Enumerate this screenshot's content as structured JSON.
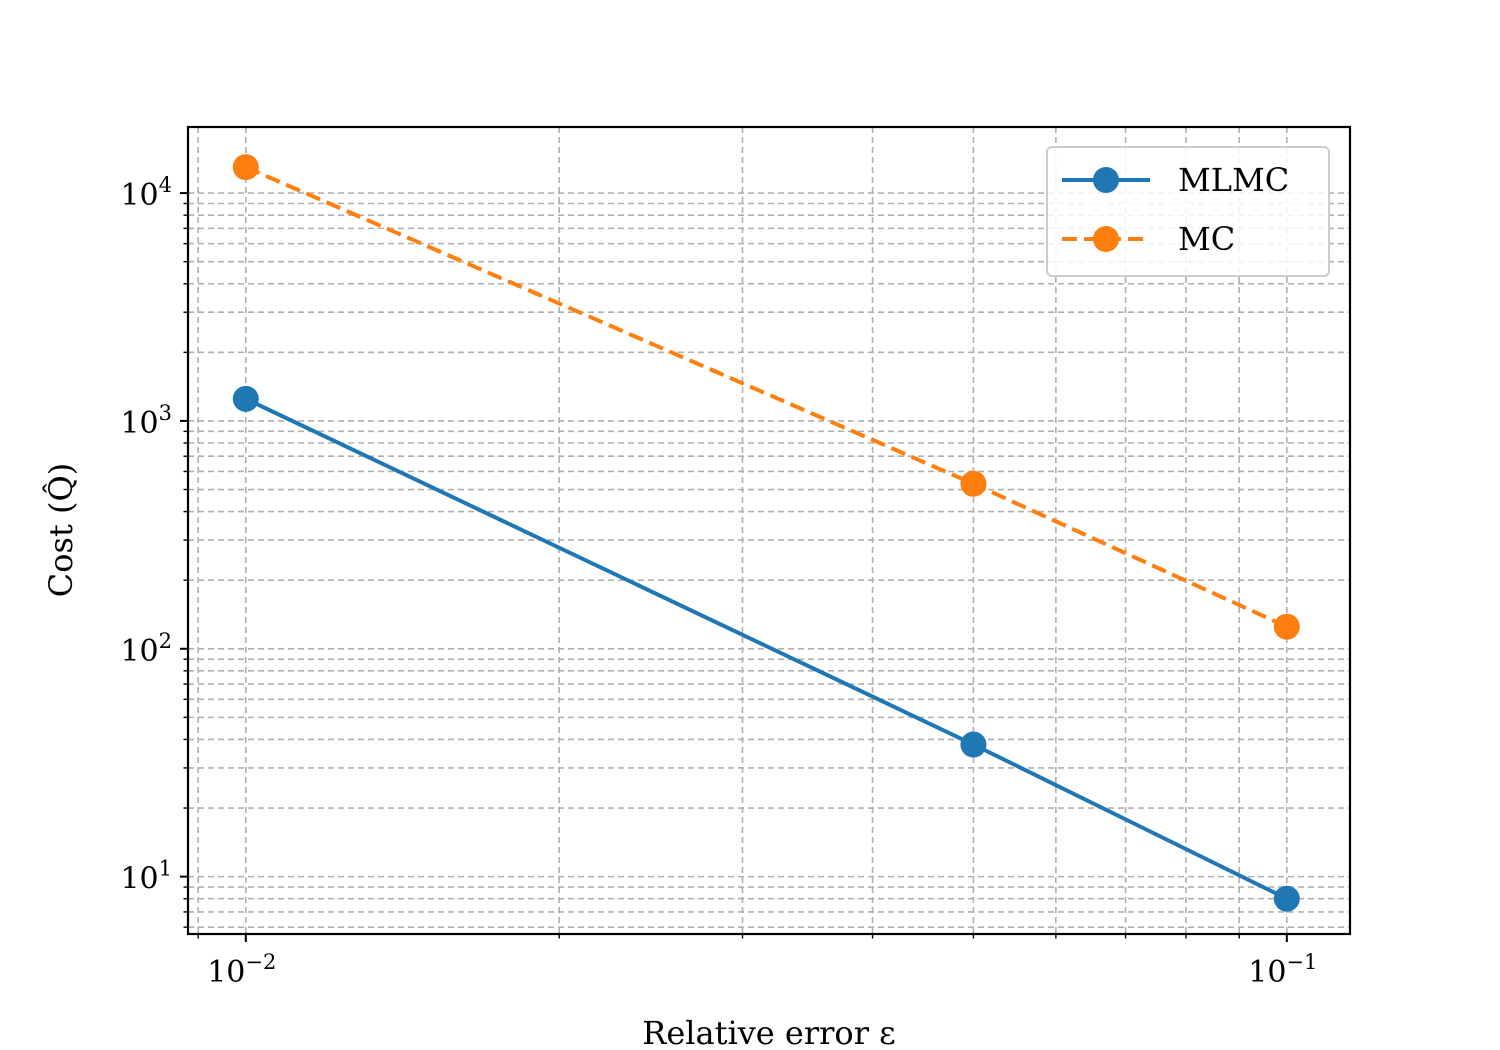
{
  "chart_data": {
    "type": "line",
    "xscale": "log",
    "yscale": "log",
    "xlabel": "Relative error ε",
    "ylabel": "Cost (Q̂)",
    "xlim": [
      0.0088,
      0.115
    ],
    "ylim": [
      5.6,
      19500
    ],
    "grid": true,
    "legend_position": "top-right",
    "x_ticks": [
      {
        "value": 0.01,
        "base": "10",
        "exp": "−2"
      },
      {
        "value": 0.1,
        "base": "10",
        "exp": "−1"
      }
    ],
    "y_ticks": [
      {
        "value": 10,
        "base": "10",
        "exp": "1"
      },
      {
        "value": 100,
        "base": "10",
        "exp": "2"
      },
      {
        "value": 1000,
        "base": "10",
        "exp": "3"
      },
      {
        "value": 10000,
        "base": "10",
        "exp": "4"
      }
    ],
    "series": [
      {
        "name": "MLMC",
        "color": "#1f77b4",
        "linestyle": "solid",
        "marker": "circle",
        "x": [
          0.01,
          0.05,
          0.1
        ],
        "y": [
          1250,
          38,
          8
        ]
      },
      {
        "name": "MC",
        "color": "#ff7f0e",
        "linestyle": "dashed",
        "marker": "circle",
        "x": [
          0.01,
          0.05,
          0.1
        ],
        "y": [
          13000,
          530,
          125
        ]
      }
    ]
  }
}
